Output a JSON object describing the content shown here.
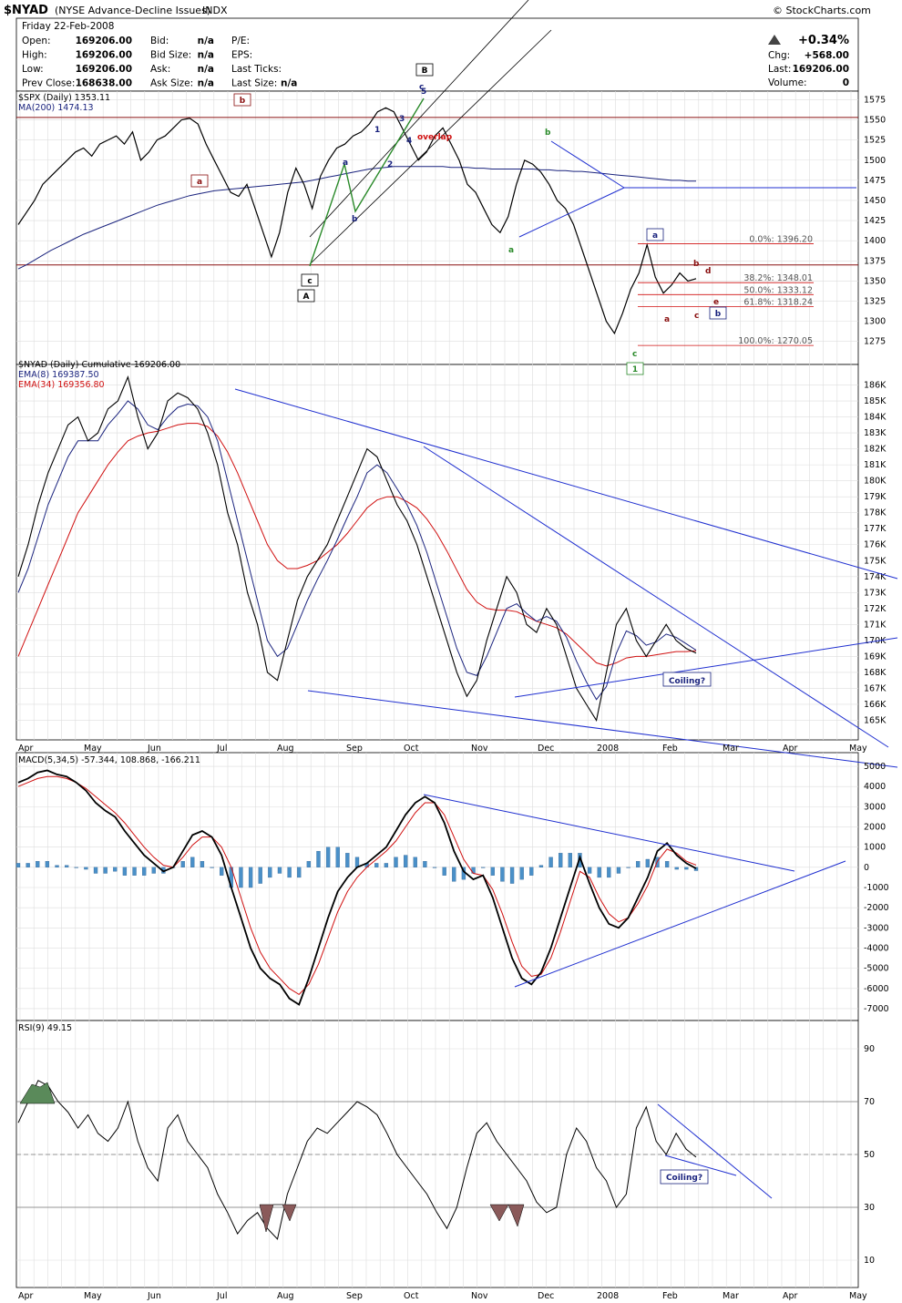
{
  "header": {
    "symbol": "$NYAD",
    "name": "(NYSE Advance-Decline Issues)",
    "exchange": "INDX",
    "date": "Friday  22-Feb-2008",
    "brand": "© StockCharts.com",
    "quotes_left": [
      {
        "label": "Open:",
        "value": "169206.00",
        "label2": "Bid:",
        "value2": "n/a",
        "label3": "P/E:",
        "value3": ""
      },
      {
        "label": "High:",
        "value": "169206.00",
        "label2": "Bid Size:",
        "value2": "n/a",
        "label3": "EPS:",
        "value3": ""
      },
      {
        "label": "Low:",
        "value": "169206.00",
        "label2": "Ask:",
        "value2": "n/a",
        "label3": "Last Ticks:",
        "value3": ""
      },
      {
        "label": "Prev Close:",
        "value": "168638.00",
        "label2": "Ask Size:",
        "value2": "n/a",
        "label3": "Last Size:",
        "value3": "n/a"
      }
    ],
    "change_pct": "+0.34%",
    "chg_label": "Chg:",
    "chg_value": "+568.00",
    "last_label": "Last:",
    "last_value": "169206.00",
    "volume_label": "Volume:",
    "volume_value": "0"
  },
  "colors": {
    "black": "#000000",
    "blue": "#1f2fd0",
    "navy": "#1a237e",
    "red": "#d01010",
    "darkred": "#8a1010",
    "green": "#2a8a2a",
    "macdbar": "#4a90c8",
    "grid": "#dddddd"
  },
  "chart_data": [
    {
      "type": "line",
      "panel": "spx",
      "legend": [
        "$SPX (Daily) 1353.11",
        "MA(200) 1474.13"
      ],
      "y_ticks": [
        1575,
        1550,
        1525,
        1500,
        1475,
        1450,
        1425,
        1400,
        1375,
        1350,
        1325,
        1300,
        1275
      ],
      "ylim": [
        1260,
        1580
      ],
      "series": [
        {
          "name": "$SPX",
          "values": [
            1420,
            1435,
            1450,
            1470,
            1480,
            1490,
            1500,
            1510,
            1515,
            1505,
            1520,
            1525,
            1530,
            1520,
            1535,
            1500,
            1510,
            1525,
            1530,
            1540,
            1550,
            1552,
            1545,
            1520,
            1500,
            1480,
            1460,
            1455,
            1470,
            1440,
            1410,
            1380,
            1410,
            1460,
            1490,
            1470,
            1440,
            1480,
            1500,
            1515,
            1520,
            1530,
            1535,
            1545,
            1560,
            1565,
            1560,
            1540,
            1520,
            1500,
            1510,
            1530,
            1540,
            1520,
            1500,
            1470,
            1460,
            1440,
            1420,
            1410,
            1430,
            1470,
            1500,
            1495,
            1485,
            1470,
            1450,
            1440,
            1420,
            1390,
            1360,
            1330,
            1300,
            1285,
            1310,
            1340,
            1360,
            1395,
            1355,
            1335,
            1345,
            1360,
            1350,
            1353
          ]
        },
        {
          "name": "MA(200)",
          "values": [
            1365,
            1370,
            1376,
            1382,
            1388,
            1393,
            1398,
            1403,
            1408,
            1412,
            1416,
            1420,
            1424,
            1428,
            1432,
            1436,
            1440,
            1444,
            1447,
            1450,
            1453,
            1456,
            1458,
            1460,
            1462,
            1463,
            1464,
            1465,
            1466,
            1467,
            1468,
            1469,
            1470,
            1471,
            1472,
            1473,
            1475,
            1477,
            1479,
            1481,
            1483,
            1485,
            1487,
            1489,
            1490,
            1491,
            1492,
            1492,
            1492,
            1492,
            1492,
            1492,
            1492,
            1491,
            1491,
            1491,
            1490,
            1490,
            1489,
            1489,
            1489,
            1489,
            1489,
            1489,
            1488,
            1488,
            1487,
            1487,
            1486,
            1486,
            1485,
            1484,
            1483,
            1482,
            1481,
            1480,
            1479,
            1478,
            1477,
            1476,
            1475,
            1475,
            1474,
            1474
          ]
        }
      ],
      "fib": [
        {
          "label": "0.0%: 1396.20",
          "v": 1396.2
        },
        {
          "label": "38.2%: 1348.01",
          "v": 1348.01
        },
        {
          "label": "50.0%: 1333.12",
          "v": 1333.12
        },
        {
          "label": "61.8%: 1318.24",
          "v": 1318.24
        },
        {
          "label": "100.0%: 1270.05",
          "v": 1270.05
        }
      ]
    },
    {
      "type": "line",
      "panel": "nyad",
      "legend": [
        "$NYAD (Daily) Cumulative 169206.00",
        "EMA(8) 169387.50",
        "EMA(34) 169356.80"
      ],
      "y_ticks": [
        "186K",
        "185K",
        "184K",
        "183K",
        "182K",
        "181K",
        "180K",
        "179K",
        "178K",
        "177K",
        "176K",
        "175K",
        "174K",
        "173K",
        "172K",
        "171K",
        "170K",
        "169K",
        "168K",
        "167K",
        "166K",
        "165K"
      ],
      "ylim": [
        164000,
        187000
      ],
      "x_ticks": [
        "Apr",
        "May",
        "Jun",
        "Jul",
        "Aug",
        "Sep",
        "Oct",
        "Nov",
        "Dec",
        "2008",
        "Feb",
        "Mar",
        "Apr",
        "May"
      ],
      "series": [
        {
          "name": "$NYAD",
          "values": [
            174000,
            176000,
            178500,
            180500,
            182000,
            183500,
            184000,
            182500,
            183000,
            184500,
            185000,
            186500,
            184000,
            182000,
            183000,
            185000,
            185500,
            185200,
            184500,
            183000,
            181000,
            178000,
            176000,
            173000,
            171000,
            168000,
            167500,
            170000,
            172500,
            174000,
            175000,
            176000,
            177500,
            179000,
            180500,
            182000,
            181500,
            180000,
            178500,
            177500,
            176000,
            174000,
            172000,
            170000,
            168000,
            166500,
            167500,
            170000,
            172000,
            174000,
            173000,
            171000,
            170500,
            172000,
            171000,
            169000,
            167000,
            166000,
            165000,
            168000,
            171000,
            172000,
            170000,
            169000,
            170000,
            171000,
            170000,
            169500,
            169206
          ]
        },
        {
          "name": "EMA(8)",
          "values": [
            173000,
            174500,
            176500,
            178500,
            180000,
            181500,
            182500,
            182500,
            182500,
            183500,
            184200,
            185000,
            184500,
            183500,
            183200,
            184000,
            184600,
            184800,
            184700,
            184000,
            182500,
            180000,
            177500,
            175000,
            172500,
            170000,
            169000,
            169500,
            171000,
            172500,
            173800,
            175000,
            176300,
            177700,
            179000,
            180500,
            181000,
            180500,
            179500,
            178500,
            177200,
            175500,
            173500,
            171500,
            169500,
            168000,
            167800,
            169000,
            170500,
            172000,
            172300,
            171700,
            171200,
            171500,
            171200,
            170200,
            168700,
            167400,
            166300,
            167100,
            169200,
            170600,
            170300,
            169700,
            169900,
            170400,
            170200,
            169800,
            169387
          ]
        },
        {
          "name": "EMA(34)",
          "values": [
            169000,
            170500,
            172000,
            173500,
            175000,
            176500,
            178000,
            179000,
            180000,
            181000,
            181800,
            182500,
            182800,
            183000,
            183100,
            183300,
            183500,
            183600,
            183600,
            183400,
            182800,
            181800,
            180500,
            179000,
            177500,
            176000,
            175000,
            174500,
            174500,
            174700,
            175000,
            175500,
            176000,
            176700,
            177500,
            178300,
            178800,
            179000,
            179000,
            178700,
            178300,
            177600,
            176700,
            175600,
            174400,
            173200,
            172400,
            172000,
            171900,
            171900,
            171800,
            171500,
            171200,
            171000,
            170800,
            170400,
            169800,
            169200,
            168600,
            168400,
            168600,
            168900,
            169000,
            169000,
            169100,
            169200,
            169300,
            169300,
            169356
          ]
        }
      ],
      "annotations": [
        "Coiling?"
      ]
    },
    {
      "type": "line",
      "panel": "macd",
      "legend": [
        "MACD(5,34,5) -57.344, 108.868, -166.211"
      ],
      "y_ticks": [
        5000,
        4000,
        3000,
        2000,
        1000,
        0,
        -1000,
        -2000,
        -3000,
        -4000,
        -5000,
        -6000,
        -7000
      ],
      "ylim": [
        -7500,
        5500
      ],
      "series": [
        {
          "name": "MACD",
          "values": [
            4200,
            4400,
            4700,
            4800,
            4600,
            4500,
            4200,
            3800,
            3200,
            2800,
            2500,
            1800,
            1200,
            600,
            200,
            -200,
            0,
            800,
            1600,
            1800,
            1500,
            600,
            -1000,
            -2500,
            -4000,
            -5000,
            -5500,
            -5800,
            -6500,
            -6800,
            -5500,
            -4000,
            -2500,
            -1200,
            -500,
            0,
            200,
            600,
            1000,
            1800,
            2600,
            3200,
            3500,
            3200,
            2200,
            800,
            -200,
            -600,
            -400,
            -1500,
            -3000,
            -4500,
            -5500,
            -5800,
            -5200,
            -4000,
            -2500,
            -1000,
            500,
            -800,
            -2000,
            -2800,
            -3000,
            -2500,
            -1500,
            -500,
            800,
            1200,
            600,
            200,
            -57
          ]
        },
        {
          "name": "Signal",
          "values": [
            4000,
            4200,
            4400,
            4500,
            4500,
            4400,
            4200,
            3900,
            3500,
            3100,
            2700,
            2200,
            1600,
            1000,
            500,
            100,
            0,
            500,
            1100,
            1500,
            1500,
            1000,
            0,
            -1500,
            -3000,
            -4200,
            -5000,
            -5500,
            -6000,
            -6300,
            -5800,
            -4800,
            -3500,
            -2200,
            -1200,
            -500,
            0,
            400,
            800,
            1300,
            2000,
            2700,
            3200,
            3200,
            2600,
            1500,
            400,
            -300,
            -400,
            -1100,
            -2300,
            -3700,
            -4900,
            -5400,
            -5300,
            -4500,
            -3200,
            -1700,
            -200,
            -500,
            -1500,
            -2300,
            -2700,
            -2500,
            -1800,
            -900,
            300,
            900,
            700,
            300,
            109
          ]
        }
      ],
      "histogram": [
        200,
        200,
        300,
        300,
        100,
        100,
        0,
        -100,
        -300,
        -300,
        -200,
        -400,
        -400,
        -400,
        -300,
        -300,
        0,
        300,
        500,
        300,
        0,
        -400,
        -1000,
        -1000,
        -1000,
        -800,
        -500,
        -300,
        -500,
        -500,
        300,
        800,
        1000,
        1000,
        700,
        500,
        200,
        200,
        200,
        500,
        600,
        500,
        300,
        0,
        -400,
        -700,
        -600,
        -300,
        0,
        -400,
        -700,
        -800,
        -600,
        -400,
        100,
        500,
        700,
        700,
        700,
        -300,
        -500,
        -500,
        -300,
        0,
        300,
        400,
        500,
        300,
        -100,
        -100,
        -166
      ]
    },
    {
      "type": "line",
      "panel": "rsi",
      "legend": [
        "RSI(9) 49.15"
      ],
      "y_ticks": [
        90,
        70,
        50,
        30,
        10
      ],
      "ylim": [
        0,
        100
      ],
      "series": [
        {
          "name": "RSI(9)",
          "values": [
            62,
            70,
            78,
            76,
            70,
            66,
            60,
            65,
            58,
            55,
            60,
            70,
            55,
            45,
            40,
            60,
            65,
            55,
            50,
            45,
            35,
            28,
            20,
            25,
            28,
            22,
            18,
            35,
            45,
            55,
            60,
            58,
            62,
            66,
            70,
            68,
            65,
            58,
            50,
            45,
            40,
            35,
            28,
            22,
            30,
            45,
            58,
            62,
            55,
            50,
            45,
            40,
            32,
            28,
            30,
            50,
            60,
            55,
            45,
            40,
            30,
            35,
            60,
            68,
            55,
            50,
            58,
            52,
            49
          ]
        }
      ],
      "annotations": [
        "Coiling?"
      ]
    }
  ],
  "waves": {
    "A": "A",
    "B": "B",
    "one": "1",
    "a": "a",
    "b": "b",
    "c": "c",
    "d": "d",
    "e": "e",
    "overlap": "overlap",
    "n1": "1",
    "n2": "2",
    "n3": "3",
    "n4": "4",
    "n5": "5"
  }
}
